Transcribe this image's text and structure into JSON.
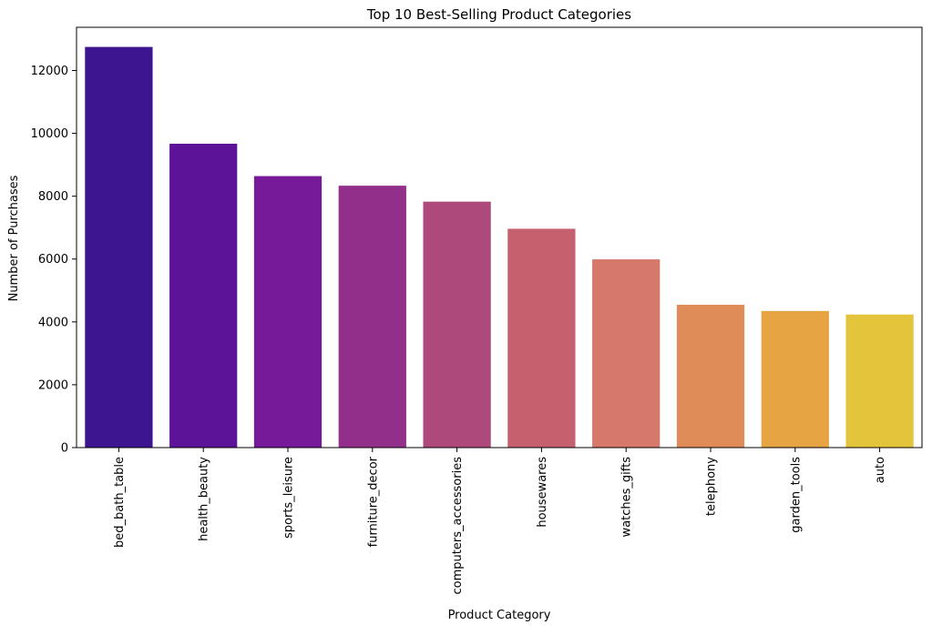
{
  "chart_data": {
    "type": "bar",
    "title": "Top 10 Best-Selling Product Categories",
    "xlabel": "Product Category",
    "ylabel": "Number of Purchases",
    "categories": [
      "bed_bath_table",
      "health_beauty",
      "sports_leisure",
      "furniture_decor",
      "computers_accessories",
      "housewares",
      "watches_gifts",
      "telephony",
      "garden_tools",
      "auto"
    ],
    "values": [
      12750,
      9670,
      8640,
      8334,
      7827,
      6964,
      5991,
      4545,
      4347,
      4235
    ],
    "colors": [
      "#3e1590",
      "#5c1397",
      "#761a99",
      "#912f8a",
      "#ad4a7b",
      "#c5606e",
      "#d6796a",
      "#e08c58",
      "#e6a542",
      "#e3c43a"
    ],
    "ylim": [
      0,
      13375
    ],
    "yticks": [
      0,
      2000,
      4000,
      6000,
      8000,
      10000,
      12000
    ],
    "ytick_labels": [
      "0",
      "2000",
      "4000",
      "6000",
      "8000",
      "10000",
      "12000"
    ],
    "grid": false,
    "legend": "none"
  }
}
